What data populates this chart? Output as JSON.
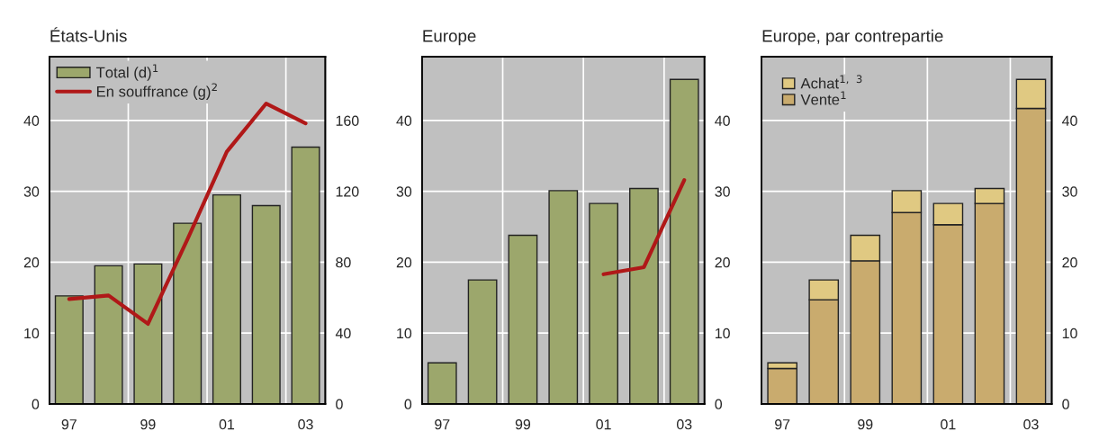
{
  "chart_data": [
    {
      "type": "bar",
      "title": "États-Unis",
      "categories": [
        "97",
        null,
        "99",
        null,
        "01",
        null,
        "03"
      ],
      "series": [
        {
          "name": "Total (d)$^{1}$",
          "axis": "y2",
          "color": "#9ca76c",
          "values": [
            61,
            78,
            79,
            102,
            118,
            112,
            145
          ]
        },
        {
          "name": "En souffrance (g)$^{2}$",
          "type": "line",
          "axis": "y",
          "color": "#b01818",
          "values": [
            14.8,
            15.3,
            11.3,
            23.2,
            35.6,
            42.4,
            39.6
          ]
        }
      ],
      "ylim": [
        0,
        49
      ],
      "yticks": [
        0,
        10,
        20,
        30,
        40
      ],
      "y2lim": [
        0,
        196
      ],
      "y2ticks": [
        0,
        40,
        80,
        120,
        160
      ],
      "grid": true,
      "legend": "top left"
    },
    {
      "type": "bar",
      "title": "Europe",
      "categories": [
        "97",
        null,
        "99",
        null,
        "01",
        null,
        "03"
      ],
      "series": [
        {
          "axis": "y2",
          "color": "#9ca76c",
          "values": [
            5.8,
            17.5,
            23.8,
            30.1,
            28.3,
            30.4,
            45.8
          ]
        },
        {
          "type": "line",
          "axis": "y",
          "color": "#b01818",
          "values": [
            null,
            null,
            null,
            null,
            18.3,
            19.3,
            31.6
          ]
        }
      ],
      "ylim": [
        0,
        49
      ],
      "yticks": [
        0,
        10,
        20,
        30,
        40
      ],
      "y2lim": [
        0,
        49
      ],
      "y2ticks": [
        0,
        10,
        20,
        30,
        40
      ],
      "grid": true
    },
    {
      "type": "bar",
      "title": "Europe, par contrepartie",
      "categories": [
        "97",
        null,
        "99",
        null,
        "01",
        null,
        "03"
      ],
      "stacked": true,
      "series": [
        {
          "name": "Vente$^{1}$",
          "axis": "y2",
          "color": "#c9ab6e",
          "values": [
            5.0,
            14.7,
            20.2,
            27.0,
            25.3,
            28.3,
            41.7
          ]
        },
        {
          "name": "Achat$^{1, 3}$",
          "axis": "y2",
          "color": "#e0c982",
          "values": [
            0.8,
            2.8,
            3.6,
            3.1,
            3.0,
            2.1,
            4.1
          ]
        }
      ],
      "y2lim": [
        0,
        49
      ],
      "y2ticks": [
        0,
        10,
        20,
        30,
        40
      ],
      "grid": true,
      "legend": "top left"
    }
  ]
}
